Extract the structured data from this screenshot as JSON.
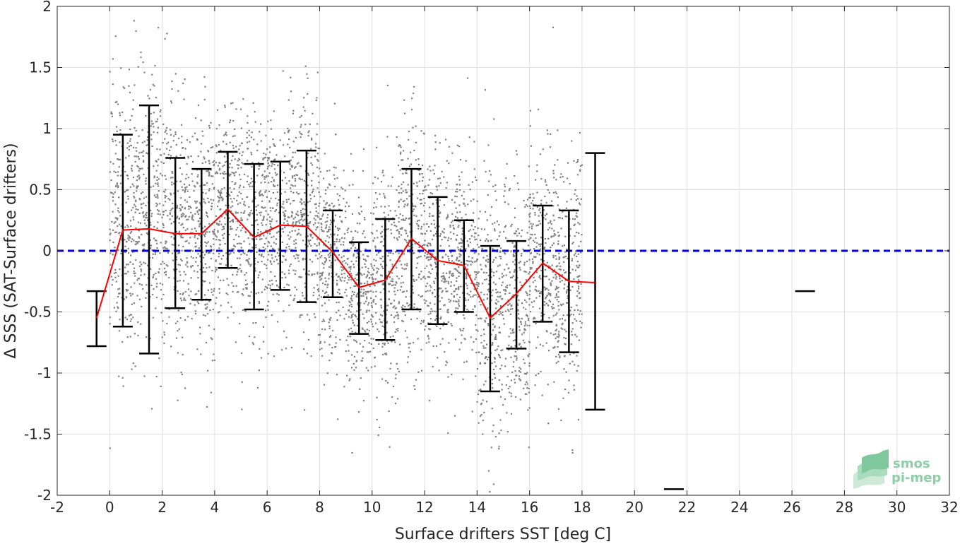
{
  "chart_data": {
    "type": "scatter",
    "xlabel": "Surface drifters SST [deg C]",
    "ylabel": "Δ SSS (SAT-Surface drifters)",
    "xlim": [
      -2,
      32
    ],
    "ylim": [
      -2,
      2
    ],
    "xticks": [
      -2,
      0,
      2,
      4,
      6,
      8,
      10,
      12,
      14,
      16,
      18,
      20,
      22,
      24,
      26,
      28,
      30,
      32
    ],
    "xtick_labels": [
      "-2",
      "0",
      "2",
      "4",
      "6",
      "8",
      "10",
      "12",
      "14",
      "16",
      "18",
      "20",
      "22",
      "24",
      "26",
      "28",
      "30",
      "32"
    ],
    "yticks": [
      -2,
      -1.5,
      -1,
      -0.5,
      0,
      0.5,
      1,
      1.5,
      2
    ],
    "ytick_labels": [
      "-2",
      "-1.5",
      "-1",
      "-0.5",
      "0",
      "0.5",
      "1",
      "1.5",
      "2"
    ],
    "grid": true,
    "reference_line": {
      "y": 0,
      "color": "#0000dd",
      "style": "dashed"
    },
    "scatter_color": "#808080",
    "scatter_density": [
      {
        "x": 0.5,
        "y_mean": 0.3,
        "y_sd": 0.55
      },
      {
        "x": 1.5,
        "y_mean": 0.3,
        "y_sd": 0.55
      },
      {
        "x": 2.5,
        "y_mean": 0.2,
        "y_sd": 0.5
      },
      {
        "x": 3.5,
        "y_mean": 0.15,
        "y_sd": 0.5
      },
      {
        "x": 4.5,
        "y_mean": 0.3,
        "y_sd": 0.4
      },
      {
        "x": 5.5,
        "y_mean": 0.2,
        "y_sd": 0.45
      },
      {
        "x": 6.5,
        "y_mean": 0.25,
        "y_sd": 0.45
      },
      {
        "x": 7.5,
        "y_mean": 0.2,
        "y_sd": 0.5
      },
      {
        "x": 8.5,
        "y_mean": -0.05,
        "y_sd": 0.4
      },
      {
        "x": 9.5,
        "y_mean": -0.3,
        "y_sd": 0.4
      },
      {
        "x": 10.5,
        "y_mean": -0.25,
        "y_sd": 0.45
      },
      {
        "x": 11.5,
        "y_mean": 0.1,
        "y_sd": 0.5
      },
      {
        "x": 12.5,
        "y_mean": -0.1,
        "y_sd": 0.45
      },
      {
        "x": 13.5,
        "y_mean": -0.1,
        "y_sd": 0.4
      },
      {
        "x": 14.5,
        "y_mean": -0.5,
        "y_sd": 0.55
      },
      {
        "x": 15.5,
        "y_mean": -0.35,
        "y_sd": 0.45
      },
      {
        "x": 16.5,
        "y_mean": -0.1,
        "y_sd": 0.45
      },
      {
        "x": 17.5,
        "y_mean": -0.25,
        "y_sd": 0.5
      }
    ],
    "series": [
      {
        "style": "errorbar",
        "color": "#000000",
        "x": [
          -0.5,
          0.5,
          1.5,
          2.5,
          3.5,
          4.5,
          5.5,
          6.5,
          7.5,
          8.5,
          9.5,
          10.5,
          11.5,
          12.5,
          13.5,
          14.5,
          15.5,
          16.5,
          17.5,
          18.5
        ],
        "lower": [
          -0.78,
          -0.62,
          -0.84,
          -0.47,
          -0.4,
          -0.14,
          -0.48,
          -0.32,
          -0.42,
          -0.38,
          -0.68,
          -0.73,
          -0.48,
          -0.6,
          -0.5,
          -1.15,
          -0.8,
          -0.58,
          -0.83,
          -1.3
        ],
        "upper": [
          -0.33,
          0.95,
          1.19,
          0.76,
          0.67,
          0.81,
          0.71,
          0.73,
          0.82,
          0.33,
          0.07,
          0.26,
          0.67,
          0.44,
          0.25,
          0.04,
          0.08,
          0.37,
          0.33,
          0.8
        ]
      },
      {
        "style": "line",
        "color": "#ff0000",
        "x": [
          -0.5,
          0.5,
          1.5,
          2.5,
          3.5,
          4.5,
          5.5,
          6.5,
          7.5,
          8.5,
          9.5,
          10.5,
          11.5,
          12.5,
          13.5,
          14.5,
          15.5,
          16.5,
          17.5,
          18.5
        ],
        "values": [
          -0.55,
          0.17,
          0.18,
          0.14,
          0.14,
          0.34,
          0.11,
          0.21,
          0.2,
          -0.01,
          -0.3,
          -0.24,
          0.1,
          -0.08,
          -0.12,
          -0.55,
          -0.35,
          -0.1,
          -0.25,
          -0.26
        ]
      },
      {
        "style": "isolated-bars",
        "color": "#000000",
        "x": [
          21.5,
          26.5
        ],
        "values": [
          -1.95,
          -0.33
        ]
      }
    ]
  },
  "logo": {
    "line1": "smos",
    "line2": "pi-mep"
  }
}
